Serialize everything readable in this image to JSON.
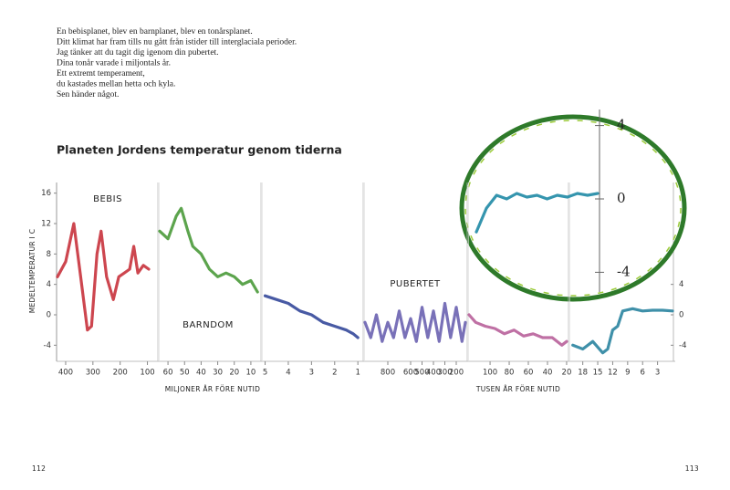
{
  "text": {
    "poem": [
      "En bebisplanet, blev en barnplanet, blev en tonårsplanet.",
      "Ditt klimat har fram tills nu gått från istider till interglaciala perioder.",
      "Jag tänker att du tagit dig igenom din pubertet.",
      "Dina tonår varade i miljontals år.",
      "Ett extremt temperament,",
      "du kastades mellan hetta och kyla.",
      "Sen händer något."
    ],
    "page_left": "112",
    "page_right": "113"
  },
  "chart_data": {
    "type": "line",
    "title": "Planeten Jordens temperatur genom tiderna",
    "ylabel": "MEDELTEMPERATUR I C",
    "xlabels": [
      "MILJONER ÅR FÖRE NUTID",
      "TUSEN ÅR FÖRE NUTID"
    ],
    "ylim": [
      -6,
      18
    ],
    "yticks": [
      16,
      12,
      8,
      4,
      0,
      -4
    ],
    "right_yticks": [
      4,
      0,
      -4
    ],
    "panels": [
      {
        "label": "BEBIS",
        "color": "#c8323c",
        "xlim": [
          430,
          65
        ],
        "xticks": [
          400,
          300,
          200,
          100
        ],
        "x": [
          430,
          400,
          370,
          345,
          320,
          305,
          285,
          270,
          250,
          225,
          205,
          185,
          165,
          150,
          135,
          115,
          95
        ],
        "values": [
          5,
          7,
          12,
          5,
          -2,
          -1.5,
          8,
          11,
          5,
          2,
          5,
          5.5,
          6,
          9,
          5.5,
          6.5,
          6
        ]
      },
      {
        "label": "BARNDOM",
        "color": "#4a9a3a",
        "xlim": [
          65,
          5
        ],
        "xticks": [
          60,
          50,
          40,
          30,
          20,
          10
        ],
        "x": [
          65,
          60,
          55,
          52,
          48,
          45,
          40,
          35,
          30,
          25,
          20,
          15,
          10,
          6
        ],
        "values": [
          11,
          10,
          13,
          14,
          11,
          9,
          8,
          6,
          5,
          5.5,
          5,
          4,
          4.5,
          3
        ]
      },
      {
        "color": "#34489a",
        "xlim": [
          5.1,
          0.85
        ],
        "xticks": [
          5,
          4,
          3,
          2,
          1
        ],
        "x": [
          5,
          4.5,
          4,
          3.5,
          3,
          2.5,
          2,
          1.5,
          1.2,
          1
        ],
        "values": [
          2.5,
          2,
          1.5,
          0.5,
          0,
          -1,
          -1.5,
          -2,
          -2.5,
          -3
        ]
      },
      {
        "label": "PUBERTET",
        "color": "#6a62b0",
        "xlim": [
          1000,
          120
        ],
        "xticks": [
          800,
          600,
          500,
          400,
          300,
          200
        ],
        "x": [
          1000,
          950,
          900,
          850,
          800,
          750,
          700,
          650,
          600,
          550,
          500,
          450,
          400,
          350,
          300,
          250,
          200,
          150,
          120
        ],
        "values": [
          -1,
          -3,
          0,
          -3.5,
          -1,
          -3,
          0.5,
          -3,
          -0.5,
          -3.5,
          1,
          -3,
          0.5,
          -3.5,
          1.5,
          -3,
          1,
          -3.5,
          -1
        ]
      },
      {
        "color": "#b8609a",
        "xlim": [
          122,
          19
        ],
        "xticks": [
          100,
          80,
          60,
          40,
          20
        ],
        "x": [
          122,
          115,
          105,
          95,
          85,
          75,
          65,
          55,
          45,
          35,
          25,
          20
        ],
        "values": [
          0,
          -1,
          -1.5,
          -1.8,
          -2.5,
          -2,
          -2.8,
          -2.5,
          -3,
          -3,
          -4,
          -3.5
        ]
      },
      {
        "color": "#2a84a0",
        "xlim": [
          20.5,
          0
        ],
        "xticks": [
          18,
          15,
          12,
          9,
          6,
          3
        ],
        "x": [
          20,
          18,
          16,
          14,
          13,
          12,
          11,
          10,
          8,
          6,
          4,
          2,
          0
        ],
        "values": [
          -4,
          -4.5,
          -3.5,
          -5,
          -4.5,
          -2,
          -1.5,
          0.5,
          0.8,
          0.5,
          0.6,
          0.6,
          0.5
        ]
      }
    ],
    "inset": {
      "color": "#1f8aa5",
      "ylim": [
        -5,
        5
      ],
      "yticks": [
        4,
        0,
        -4
      ],
      "xlim": [
        12,
        0
      ],
      "x": [
        12,
        11,
        10,
        9,
        8,
        7,
        6,
        5,
        4,
        3,
        2,
        1,
        0
      ],
      "values": [
        -1.8,
        -0.5,
        0.2,
        0,
        0.3,
        0.1,
        0.2,
        0,
        0.2,
        0.1,
        0.3,
        0.2,
        0.3
      ]
    }
  }
}
